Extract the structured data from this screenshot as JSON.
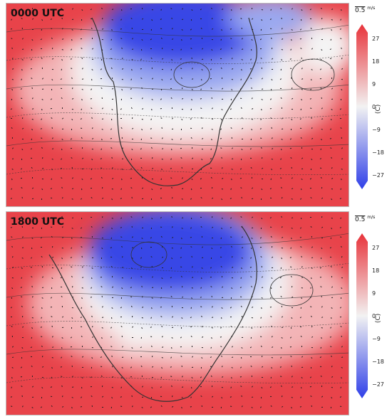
{
  "panels": [
    {
      "label": "0000 UTC"
    },
    {
      "label": "1800 UTC"
    }
  ],
  "colorbar": {
    "ticks": [
      "27",
      "18",
      "9",
      "0",
      "−9",
      "−18",
      "−27"
    ],
    "unit": "(C)",
    "colors": {
      "warm": "#e8333a",
      "neutral": "#f2f2f2",
      "cold": "#2f3fe8"
    }
  },
  "reference_vector": {
    "value": "0.5",
    "unit_num": "m",
    "unit_den": "s"
  }
}
